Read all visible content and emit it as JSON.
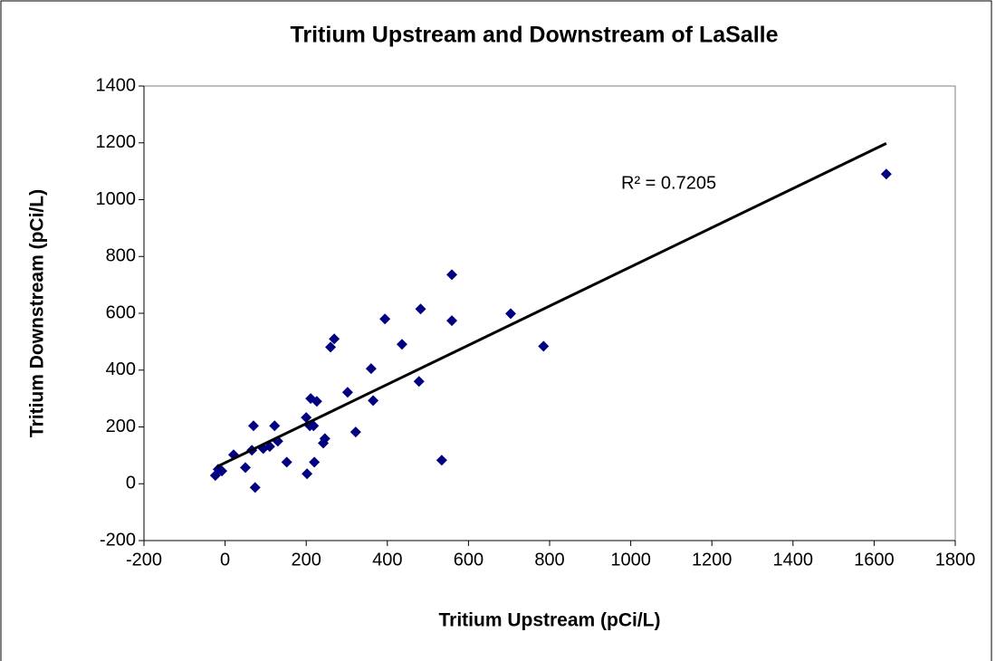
{
  "chart_data": {
    "type": "scatter",
    "title": "Tritium Upstream and Downstream of LaSalle",
    "x_label": "Tritium Upstream (pCi/L)",
    "y_label": "Tritium Downstream (pCi/L)",
    "annotation": "R² = 0.7205",
    "xlim": [
      -200,
      1800
    ],
    "xticks": [
      -200,
      0,
      200,
      400,
      600,
      800,
      1000,
      1200,
      1400,
      1600,
      1800
    ],
    "ylim": [
      -200,
      1400
    ],
    "yticks": [
      -200,
      0,
      200,
      400,
      600,
      800,
      1000,
      1200,
      1400
    ],
    "grid": false,
    "series": [
      {
        "color": "#000080",
        "x": [
          -24,
          -17,
          -8,
          21,
          50,
          66,
          70,
          74,
          94,
          110,
          122,
          130,
          152,
          200,
          202,
          209,
          211,
          218,
          220,
          226,
          242,
          246,
          260,
          269,
          302,
          322,
          360,
          365,
          394,
          436,
          478,
          482,
          534,
          559,
          559,
          704,
          785,
          1630
        ],
        "values": [
          29,
          51,
          45,
          102,
          57,
          118,
          204,
          -13,
          124,
          131,
          204,
          150,
          76,
          233,
          35,
          204,
          300,
          204,
          76,
          290,
          143,
          159,
          481,
          510,
          322,
          182,
          405,
          293,
          580,
          491,
          360,
          615,
          83,
          736,
          574,
          599,
          484,
          1090
        ]
      },
      {
        "type": "line",
        "color": "#000000",
        "x": [
          -20,
          1630
        ],
        "values": [
          60,
          1198
        ]
      }
    ]
  }
}
